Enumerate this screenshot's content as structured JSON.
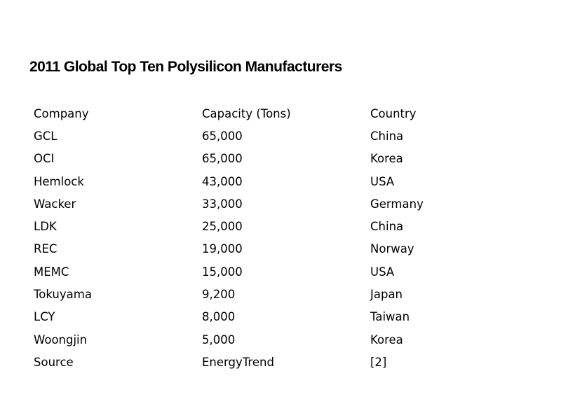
{
  "title": "2011 Global Top Ten Polysilicon Manufacturers",
  "table": {
    "headers": [
      "Company",
      "Capacity (Tons)",
      "Country"
    ],
    "rows": [
      [
        "GCL",
        "65,000",
        "China"
      ],
      [
        "OCI",
        "65,000",
        "Korea"
      ],
      [
        "Hemlock",
        "43,000",
        "USA"
      ],
      [
        "Wacker",
        "33,000",
        "Germany"
      ],
      [
        "LDK",
        "25,000",
        "China"
      ],
      [
        "REC",
        "19,000",
        "Norway"
      ],
      [
        "MEMC",
        "15,000",
        "USA"
      ],
      [
        "Tokuyama",
        "9,200",
        "Japan"
      ],
      [
        "LCY",
        "8,000",
        "Taiwan"
      ],
      [
        "Woongjin",
        "5,000",
        "Korea"
      ],
      [
        "Source",
        "EnergyTrend",
        "[2]"
      ]
    ]
  }
}
